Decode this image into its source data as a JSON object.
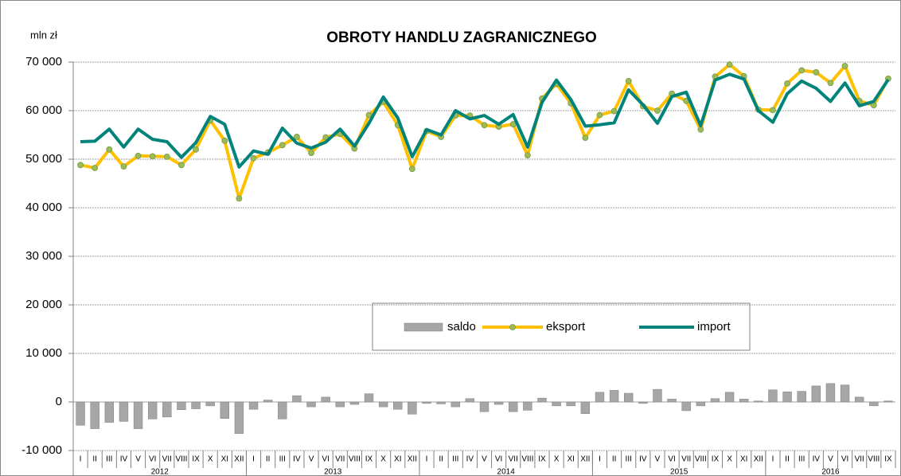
{
  "chart_data": {
    "type": "combo",
    "title": "OBROTY HANDLU ZAGRANICZNEGO",
    "y_axis_label": "mln zł",
    "categories": [
      "I",
      "II",
      "III",
      "IV",
      "V",
      "VI",
      "VII",
      "VIII",
      "IX",
      "X",
      "XI",
      "XII",
      "I",
      "II",
      "III",
      "IV",
      "V",
      "VI",
      "VII",
      "VIII",
      "IX",
      "X",
      "XI",
      "XII",
      "I",
      "II",
      "III",
      "IV",
      "V",
      "VI",
      "VII",
      "VIII",
      "IX",
      "X",
      "XI",
      "XII",
      "I",
      "II",
      "III",
      "IV",
      "V",
      "VI",
      "VII",
      "VIII",
      "IX",
      "X",
      "XI",
      "XII",
      "I",
      "II",
      "III",
      "IV",
      "V",
      "VI",
      "VII",
      "VIII",
      "IX"
    ],
    "years": [
      "2012",
      "2013",
      "2014",
      "2015",
      "2016"
    ],
    "ylim": [
      -10000,
      70000
    ],
    "yticks": [
      {
        "value": -10000,
        "label": "-10 000"
      },
      0,
      {
        "value": 10000,
        "label": "10 000"
      },
      {
        "value": 20000,
        "label": "20 000"
      },
      {
        "value": 30000,
        "label": "30 000"
      },
      {
        "value": 40000,
        "label": "40 000"
      },
      {
        "value": 50000,
        "label": "50 000"
      },
      {
        "value": 60000,
        "label": "60 000"
      },
      {
        "value": 70000,
        "label": "70 000"
      }
    ],
    "grid": true,
    "series": [
      {
        "name": "saldo",
        "type": "bar",
        "color": "#a6a6a6",
        "values": [
          -4800,
          -5500,
          -4200,
          -4000,
          -5500,
          -3500,
          -3100,
          -1600,
          -1400,
          -800,
          -3400,
          -6500,
          -1500,
          400,
          -3500,
          1300,
          -1000,
          1000,
          -1000,
          -500,
          1700,
          -1000,
          -1500,
          -2500,
          -300,
          -400,
          -1000,
          700,
          -2000,
          -500,
          -2000,
          -1700,
          800,
          -800,
          -800,
          -2400,
          2000,
          2400,
          1800,
          -300,
          2600,
          600,
          -1800,
          -800,
          700,
          2000,
          600,
          200,
          2500,
          2100,
          2200,
          3300,
          3800,
          3500,
          1000,
          -800,
          200
        ]
      },
      {
        "name": "eksport",
        "type": "line",
        "color": "#ffc000",
        "marker_color": "#9bbb59",
        "values": [
          48800,
          48200,
          52000,
          48500,
          50700,
          50600,
          50500,
          48800,
          52000,
          58000,
          53800,
          41900,
          50200,
          51400,
          52900,
          54600,
          51300,
          54500,
          55200,
          52200,
          59100,
          61800,
          57000,
          48000,
          55800,
          54600,
          59000,
          59000,
          57000,
          56700,
          57200,
          50800,
          62500,
          65500,
          61500,
          54400,
          59100,
          59900,
          66100,
          60900,
          60000,
          63500,
          62000,
          56100,
          67000,
          69500,
          67100,
          60200,
          60100,
          65600,
          68300,
          67900,
          65700,
          69200,
          62000,
          61100,
          66600
        ]
      },
      {
        "name": "import",
        "type": "line",
        "color": "#00837b",
        "values": [
          53600,
          53700,
          56200,
          52500,
          56200,
          54100,
          53600,
          50400,
          53400,
          58800,
          57200,
          48400,
          51700,
          51000,
          56400,
          53300,
          52300,
          53500,
          56200,
          52700,
          57400,
          62800,
          58500,
          50500,
          56100,
          55000,
          60000,
          58300,
          59000,
          57200,
          59200,
          52500,
          61700,
          66300,
          62300,
          56800,
          57100,
          57500,
          64300,
          61200,
          57400,
          62900,
          63800,
          56900,
          66300,
          67500,
          66500,
          60000,
          57600,
          63500,
          66100,
          64600,
          61900,
          65700,
          61000,
          61900,
          66400
        ]
      }
    ]
  }
}
